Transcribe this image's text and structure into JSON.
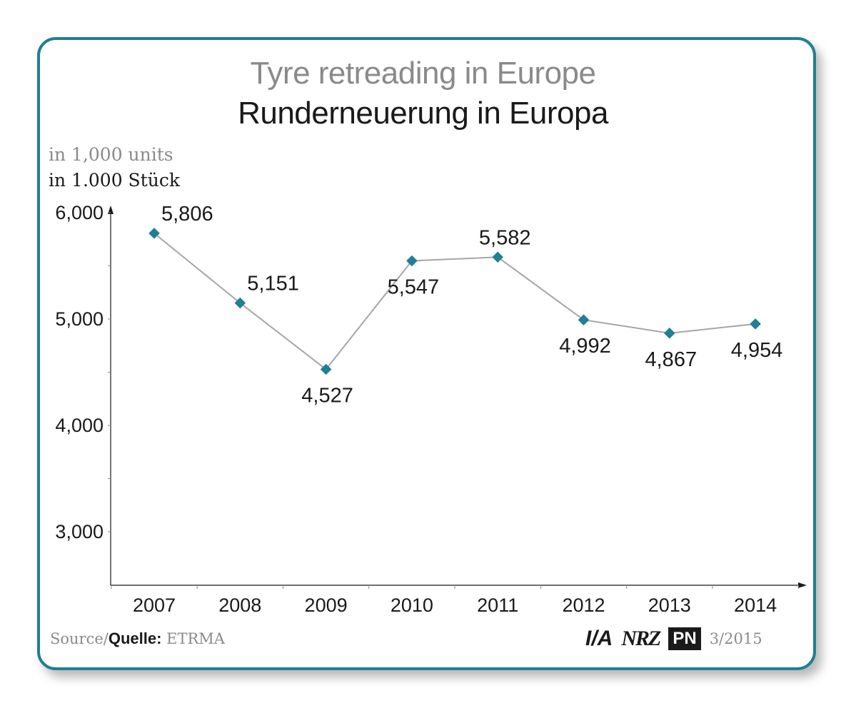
{
  "chart_data": {
    "type": "line",
    "title": "Tyre retreading in Europe",
    "subtitle": "Runderneuerung in Europa",
    "ylabel": "in 1,000 units",
    "ylabel_de": "in 1.000 Stück",
    "categories": [
      "2007",
      "2008",
      "2009",
      "2010",
      "2011",
      "2012",
      "2013",
      "2014"
    ],
    "values": [
      5806,
      5151,
      4527,
      5547,
      5582,
      4992,
      4867,
      4954
    ],
    "value_labels": [
      "5,806",
      "5,151",
      "4,527",
      "5,547",
      "5,582",
      "4,992",
      "4,867",
      "4,954"
    ],
    "y_ticks": [
      "3,000",
      "4,000",
      "5,000",
      "6,000"
    ],
    "y_tick_values": [
      3000,
      4000,
      5000,
      6000
    ],
    "ylim": [
      2500,
      6000
    ],
    "grid": false,
    "colors": {
      "line": "#a6a6a6",
      "marker": "#1f7f95",
      "axis": "#1a1a1a",
      "frame": "#1f7f95"
    }
  },
  "footer": {
    "source_label": "Source/",
    "source_label_de": "Quelle:",
    "source_value": " ETRMA",
    "logo_ia": "I/A",
    "logo_nrz": "NRZ",
    "logo_pn": "PN",
    "issue": "3/2015"
  }
}
